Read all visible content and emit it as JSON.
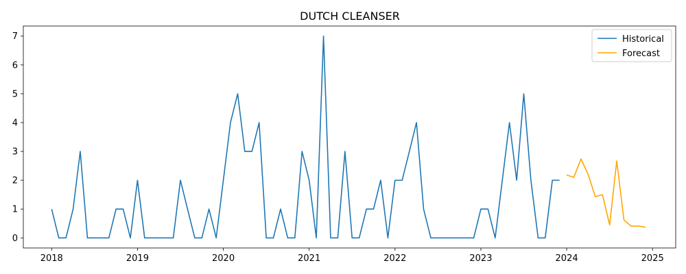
{
  "chart_data": {
    "type": "line",
    "title": "DUTCH CLEANSER",
    "xlabel": "",
    "ylabel": "",
    "xlim": [
      2017.67,
      2025.27
    ],
    "ylim": [
      -0.35,
      7.35
    ],
    "x_ticks": [
      2018,
      2019,
      2020,
      2021,
      2022,
      2023,
      2024,
      2025
    ],
    "x_tick_labels": [
      "2018",
      "2019",
      "2020",
      "2021",
      "2022",
      "2023",
      "2024",
      "2025"
    ],
    "y_ticks": [
      0,
      1,
      2,
      3,
      4,
      5,
      6,
      7
    ],
    "y_tick_labels": [
      "0",
      "1",
      "2",
      "3",
      "4",
      "5",
      "6",
      "7"
    ],
    "grid": false,
    "legend_position": "top-right",
    "colors": {
      "Historical": "#1f77b4",
      "Forecast": "#ffa500"
    },
    "series": [
      {
        "name": "Historical",
        "x": [
          2018.0,
          2018.083,
          2018.167,
          2018.25,
          2018.333,
          2018.417,
          2018.5,
          2018.583,
          2018.667,
          2018.75,
          2018.833,
          2018.917,
          2019.0,
          2019.083,
          2019.167,
          2019.25,
          2019.333,
          2019.417,
          2019.5,
          2019.583,
          2019.667,
          2019.75,
          2019.833,
          2019.917,
          2020.0,
          2020.083,
          2020.167,
          2020.25,
          2020.333,
          2020.417,
          2020.5,
          2020.583,
          2020.667,
          2020.75,
          2020.833,
          2020.917,
          2021.0,
          2021.083,
          2021.167,
          2021.25,
          2021.333,
          2021.417,
          2021.5,
          2021.583,
          2021.667,
          2021.75,
          2021.833,
          2021.917,
          2022.0,
          2022.083,
          2022.167,
          2022.25,
          2022.333,
          2022.417,
          2022.5,
          2022.583,
          2022.667,
          2022.75,
          2022.833,
          2022.917,
          2023.0,
          2023.083,
          2023.167,
          2023.25,
          2023.333,
          2023.417,
          2023.5,
          2023.583,
          2023.667,
          2023.75,
          2023.833,
          2023.917
        ],
        "y": [
          1,
          0,
          0,
          1,
          3,
          0,
          0,
          0,
          0,
          1,
          1,
          0,
          2,
          0,
          0,
          0,
          0,
          0,
          2,
          1,
          0,
          0,
          1,
          0,
          2,
          4,
          5,
          3,
          3,
          4,
          0,
          0,
          1,
          0,
          0,
          3,
          2,
          0,
          7,
          0,
          0,
          3,
          0,
          0,
          1,
          1,
          2,
          0,
          2,
          2,
          3,
          4,
          1,
          0,
          0,
          0,
          0,
          0,
          0,
          0,
          1,
          1,
          0,
          2,
          4,
          2,
          5,
          2,
          0,
          0,
          2,
          2
        ]
      },
      {
        "name": "Forecast",
        "x": [
          2024.0,
          2024.083,
          2024.167,
          2024.25,
          2024.333,
          2024.417,
          2024.5,
          2024.583,
          2024.667,
          2024.75,
          2024.833,
          2024.917
        ],
        "y": [
          2.18,
          2.1,
          2.74,
          2.2,
          1.43,
          1.5,
          0.45,
          2.67,
          0.62,
          0.41,
          0.41,
          0.37
        ]
      }
    ]
  }
}
